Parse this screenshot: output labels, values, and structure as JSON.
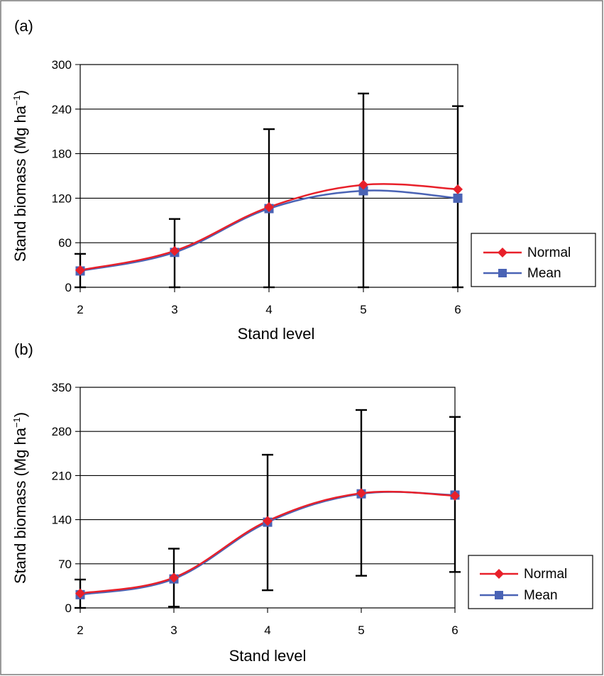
{
  "colors": {
    "normal": "#e8202a",
    "mean": "#4a63b5",
    "errorbar": "#000000",
    "grid": "#000000"
  },
  "chart_data": [
    {
      "panel_label": "(a)",
      "type": "line",
      "xlabel": "Stand level",
      "ylabel": "Stand biomass (Mg ha",
      "ylabel_sup": "−1",
      "ylabel_close": ")",
      "x": [
        2,
        3,
        4,
        5,
        6
      ],
      "x_ticks": [
        "2",
        "3",
        "4",
        "5",
        "6"
      ],
      "ylim": [
        0,
        300
      ],
      "y_ticks": [
        "0",
        "60",
        "120",
        "180",
        "240",
        "300"
      ],
      "grid": true,
      "legend_position": "right",
      "series": [
        {
          "name": "Normal",
          "marker": "diamond",
          "values": [
            23,
            49,
            108,
            138,
            132
          ]
        },
        {
          "name": "Mean",
          "marker": "square",
          "values": [
            22,
            47,
            106,
            130,
            120
          ]
        }
      ],
      "error_bars": {
        "upper": [
          45,
          92,
          213,
          261,
          244
        ],
        "lower": [
          0,
          0,
          0,
          0,
          0
        ]
      }
    },
    {
      "panel_label": "(b)",
      "type": "line",
      "xlabel": "Stand level",
      "ylabel": "Stand biomass (Mg ha",
      "ylabel_sup": "−1",
      "ylabel_close": ")",
      "x": [
        2,
        3,
        4,
        5,
        6
      ],
      "x_ticks": [
        "2",
        "3",
        "4",
        "5",
        "6"
      ],
      "ylim": [
        0,
        350
      ],
      "y_ticks": [
        "0",
        "70",
        "140",
        "210",
        "280",
        "350"
      ],
      "grid": true,
      "legend_position": "right",
      "series": [
        {
          "name": "Normal",
          "marker": "diamond",
          "values": [
            23,
            48,
            138,
            182,
            178
          ]
        },
        {
          "name": "Mean",
          "marker": "square",
          "values": [
            21,
            46,
            136,
            181,
            179
          ]
        }
      ],
      "error_bars": {
        "upper": [
          45,
          94,
          243,
          314,
          303
        ],
        "lower": [
          0,
          2,
          28,
          51,
          57
        ]
      }
    }
  ]
}
